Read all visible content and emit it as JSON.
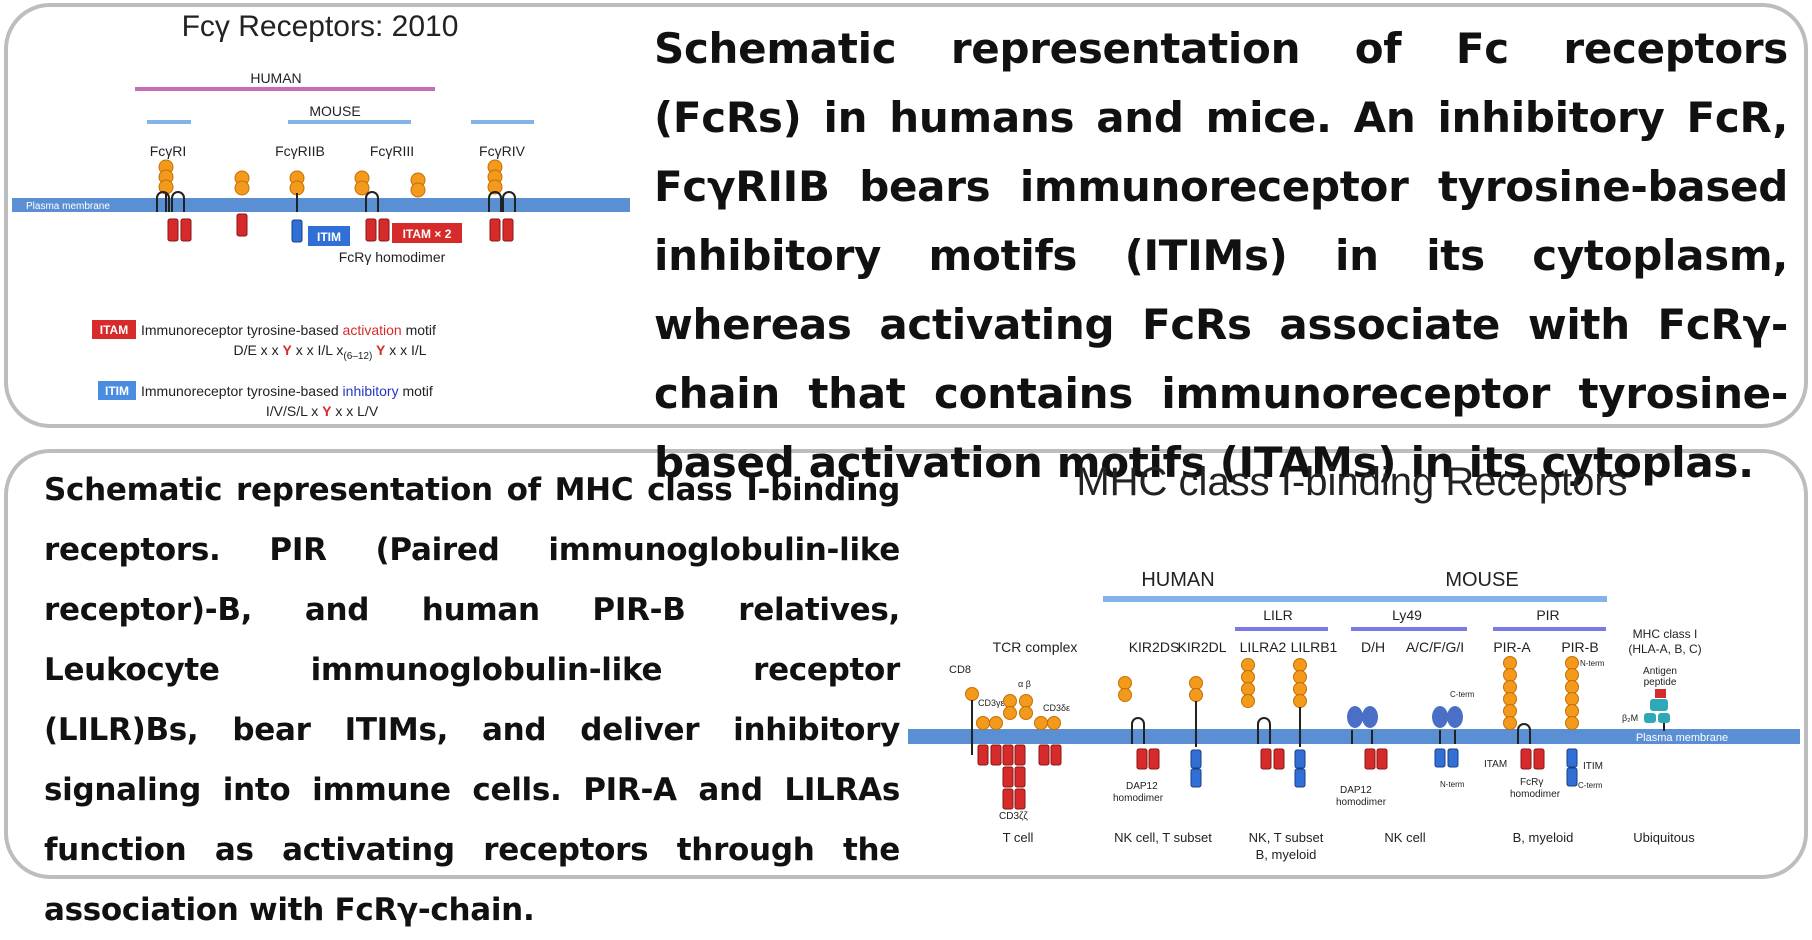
{
  "panel1": {
    "diagram": {
      "title": "Fcγ Receptors: 2010",
      "species": {
        "human": "HUMAN",
        "mouse": "MOUSE"
      },
      "receptors": [
        "FcγRI",
        "FcγRIIB",
        "FcγRIII",
        "FcγRIV"
      ],
      "membrane_label": "Plasma membrane",
      "itim_box": "ITIM",
      "itam_box": "ITAM × 2",
      "homodimer_label": "FcRγ homodimer",
      "legend": {
        "itam_tag": "ITAM",
        "itam_text_prefix": "Immunoreceptor tyrosine-based ",
        "itam_text_key": "activation",
        "itam_text_suffix": " motif",
        "itam_motif_a": "D/E x x ",
        "itam_motif_y1": "Y",
        "itam_motif_b": " x x I/L x",
        "itam_motif_sub": "(6–12)",
        "itam_motif_y2": " Y",
        "itam_motif_c": " x x I/L",
        "itim_tag": "ITIM",
        "itim_text_prefix": "Immunoreceptor tyrosine-based ",
        "itim_text_key": "inhibitory",
        "itim_text_suffix": " motif",
        "itim_motif_a": "I/V/S/L x ",
        "itim_motif_y": "Y",
        "itim_motif_b": " x x L/V"
      }
    },
    "description": "Schematic representation of Fc receptors (FcRs) in humans and mice. An inhibitory FcR, FcγRIIB bears immunoreceptor tyrosine-based inhibitory motifs (ITIMs) in its cytoplasm, whereas activating FcRs associate with FcRγ-chain that contains immunoreceptor tyrosine-based activation motifs (ITAMs) in its cytoplas."
  },
  "panel2": {
    "description": "Schematic representation of MHC class I-binding receptors. PIR (Paired immunoglobulin-like receptor)-B, and human PIR-B relatives, Leukocyte immunoglobulin-like receptor (LILR)Bs, bear ITIMs, and deliver inhibitory signaling into immune cells. PIR-A and LILRAs function as activating receptors through the association with FcRγ-chain.",
    "diagram": {
      "title": "MHC class I-binding Receptors",
      "species": {
        "human": "HUMAN",
        "mouse": "MOUSE"
      },
      "subgroups": {
        "lilr": "LILR",
        "ly49": "Ly49",
        "pir": "PIR"
      },
      "receptors": [
        "TCR complex",
        "KIR2DS",
        "KIR2DL",
        "LILRA2",
        "LILRB1",
        "D/H",
        "A/C/F/G/I",
        "PIR-A",
        "PIR-B"
      ],
      "mhc_label_1": "MHC class I",
      "mhc_label_2": "(HLA-A, B, C)",
      "antigen_1": "Antigen",
      "antigen_2": "peptide",
      "b2m": "β₂M",
      "membrane_label": "Plasma membrane",
      "small_labels": {
        "cd8": "CD8",
        "cd3ge": "CD3γε",
        "ab": "α β",
        "cd3de": "CD3δε",
        "cd3zz": "CD3ζζ",
        "dap12_kir_1": "DAP12",
        "dap12_kir_2": "homodimer",
        "dap12_ly49_1": "DAP12",
        "dap12_ly49_2": "homodimer",
        "c_term_ly49": "C-term",
        "n_term_ly49": "N-term",
        "itam": "ITAM",
        "fcrg_1": "FcRγ",
        "fcrg_2": "homodimer",
        "n_term_pir": "N-term",
        "c_term_pir": "C-term",
        "itim": "ITIM"
      },
      "cell_types": {
        "t": "T cell",
        "nk_t": "NK cell, T subset",
        "nk_t_b_1": "NK, T subset",
        "nk_t_b_2": "B, myeloid",
        "nk": "NK cell",
        "b_myeloid": "B, myeloid",
        "ubiquitous": "Ubiquitous"
      }
    }
  },
  "colors": {
    "membrane": "#5b8fd4",
    "human_bar_top": "#c66db4",
    "species_bar": "#82b4ea",
    "domain_orange": "#f39a1d",
    "itam_red": "#d72b2b",
    "itim_blue": "#2f6fd6",
    "ly49_blue": "#4b6fc6",
    "mhc_teal": "#31a8b8"
  }
}
